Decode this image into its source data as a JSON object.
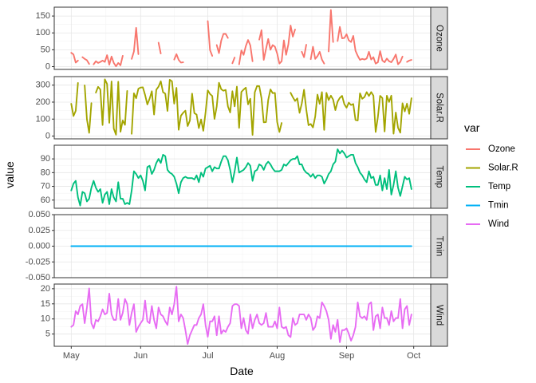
{
  "chart_data": {
    "type": "line",
    "xlabel": "Date",
    "ylabel": "value",
    "x_ticks": [
      "May",
      "Jun",
      "Jul",
      "Aug",
      "Sep",
      "Oct"
    ],
    "x_tick_days": [
      0,
      31,
      61,
      92,
      123,
      153
    ],
    "x_range_days": [
      -7.6,
      160.6
    ],
    "legend": {
      "title": "var",
      "placement": "right"
    },
    "series": [
      {
        "name": "Ozone",
        "color": "#F8766D",
        "ylim": [
          -8.25,
          176.25
        ],
        "yticks": [
          0,
          50,
          100,
          150
        ],
        "values": [
          41,
          36,
          12,
          18,
          null,
          28,
          23,
          19,
          8,
          null,
          7,
          16,
          11,
          14,
          18,
          14,
          34,
          6,
          30,
          11,
          1,
          11,
          4,
          32,
          null,
          null,
          null,
          23,
          45,
          115,
          37,
          null,
          null,
          null,
          null,
          null,
          null,
          29,
          null,
          71,
          39,
          null,
          null,
          23,
          null,
          null,
          21,
          37,
          20,
          12,
          13,
          null,
          null,
          null,
          null,
          null,
          null,
          null,
          null,
          null,
          null,
          135,
          49,
          32,
          null,
          64,
          40,
          77,
          97,
          97,
          85,
          null,
          10,
          27,
          null,
          7,
          48,
          35,
          61,
          79,
          63,
          16,
          null,
          null,
          80,
          108,
          20,
          52,
          82,
          50,
          64,
          59,
          39,
          9,
          16,
          78,
          35,
          66,
          122,
          89,
          110,
          null,
          null,
          44,
          28,
          65,
          null,
          22,
          59,
          23,
          31,
          44,
          21,
          9,
          null,
          45,
          168,
          73,
          null,
          76,
          118,
          84,
          85,
          96,
          78,
          73,
          91,
          47,
          32,
          20,
          23,
          21,
          24,
          44,
          21,
          28,
          9,
          13,
          46,
          18,
          13,
          24,
          16,
          13,
          23,
          36,
          7,
          14,
          30,
          null,
          14,
          18,
          20
        ]
      },
      {
        "name": "Solar.R",
        "color": "#A3A500",
        "ylim": [
          -16.35,
          350.35
        ],
        "yticks": [
          0,
          100,
          200,
          300
        ],
        "values": [
          190,
          118,
          149,
          313,
          null,
          null,
          299,
          99,
          19,
          194,
          null,
          256,
          290,
          274,
          65,
          334,
          307,
          78,
          322,
          44,
          8,
          320,
          25,
          92,
          66,
          266,
          null,
          13,
          252,
          223,
          279,
          286,
          287,
          242,
          186,
          220,
          264,
          127,
          273,
          291,
          323,
          259,
          250,
          148,
          332,
          322,
          191,
          284,
          37,
          120,
          137,
          150,
          59,
          91,
          250,
          135,
          127,
          47,
          98,
          31,
          138,
          269,
          248,
          236,
          101,
          175,
          314,
          276,
          267,
          272,
          175,
          139,
          264,
          175,
          291,
          48,
          260,
          274,
          285,
          187,
          220,
          7,
          258,
          295,
          294,
          223,
          81,
          82,
          213,
          275,
          253,
          254,
          83,
          24,
          77,
          null,
          null,
          null,
          255,
          229,
          207,
          222,
          137,
          192,
          273,
          157,
          64,
          71,
          51,
          115,
          244,
          190,
          259,
          36,
          255,
          212,
          238,
          215,
          153,
          203,
          225,
          237,
          188,
          167,
          197,
          183,
          189,
          95,
          92,
          252,
          220,
          230,
          259,
          236,
          259,
          238,
          24,
          112,
          237,
          224,
          27,
          238,
          201,
          238,
          14,
          139,
          49,
          20,
          193,
          145,
          191,
          131,
          223
        ]
      },
      {
        "name": "Temp",
        "color": "#00BF7D",
        "ylim": [
          54.05,
          99.95
        ],
        "yticks": [
          60,
          70,
          80,
          90
        ],
        "values": [
          67,
          72,
          74,
          62,
          56,
          66,
          65,
          59,
          61,
          69,
          74,
          69,
          66,
          68,
          58,
          64,
          66,
          57,
          68,
          62,
          59,
          73,
          61,
          61,
          57,
          58,
          57,
          67,
          81,
          79,
          76,
          78,
          74,
          67,
          84,
          85,
          79,
          82,
          87,
          90,
          87,
          93,
          92,
          82,
          80,
          79,
          77,
          72,
          65,
          73,
          76,
          77,
          76,
          76,
          76,
          75,
          78,
          73,
          80,
          77,
          83,
          84,
          85,
          81,
          84,
          83,
          83,
          88,
          92,
          92,
          89,
          82,
          73,
          81,
          91,
          80,
          81,
          82,
          84,
          87,
          85,
          74,
          81,
          82,
          86,
          85,
          82,
          86,
          88,
          86,
          83,
          81,
          81,
          81,
          82,
          86,
          85,
          87,
          89,
          90,
          90,
          92,
          86,
          86,
          82,
          80,
          79,
          77,
          79,
          76,
          78,
          78,
          77,
          72,
          75,
          79,
          81,
          86,
          88,
          97,
          94,
          96,
          94,
          91,
          92,
          93,
          93,
          87,
          84,
          80,
          78,
          75,
          73,
          81,
          76,
          77,
          71,
          71,
          78,
          67,
          76,
          68,
          82,
          64,
          71,
          81,
          69,
          63,
          70,
          77,
          75,
          76,
          68
        ]
      },
      {
        "name": "Tmin",
        "color": "#00B0F6",
        "ylim": [
          -0.05,
          0.05
        ],
        "yticks": [
          -0.05,
          -0.025,
          0.0,
          0.025,
          0.05
        ],
        "ytick_labels": [
          "-0.050",
          "-0.025",
          "0.000",
          "0.025",
          "0.050"
        ],
        "constant": 0,
        "days": [
          0,
          152
        ]
      },
      {
        "name": "Wind",
        "color": "#E76BF3",
        "ylim": [
          0.95,
          21.55
        ],
        "yticks": [
          5,
          10,
          15,
          20
        ],
        "values": [
          7.4,
          8.0,
          12.6,
          11.5,
          14.3,
          14.9,
          8.6,
          13.8,
          20.1,
          8.6,
          6.9,
          9.7,
          9.2,
          10.9,
          13.2,
          11.5,
          12.0,
          18.4,
          11.5,
          9.7,
          9.7,
          16.6,
          9.7,
          12.0,
          16.6,
          14.9,
          8.0,
          12.0,
          14.9,
          5.7,
          7.4,
          8.6,
          9.7,
          16.1,
          9.2,
          8.6,
          14.3,
          9.7,
          6.9,
          13.8,
          11.5,
          10.9,
          9.2,
          8.0,
          13.8,
          11.5,
          14.9,
          20.7,
          9.2,
          11.5,
          10.3,
          6.3,
          1.7,
          4.6,
          6.3,
          8.0,
          8.0,
          10.3,
          11.5,
          14.9,
          8.0,
          4.1,
          9.2,
          9.2,
          10.9,
          4.6,
          10.9,
          5.1,
          6.3,
          5.7,
          7.4,
          8.6,
          14.3,
          14.9,
          14.9,
          14.3,
          6.9,
          10.3,
          6.3,
          5.1,
          11.5,
          6.9,
          9.7,
          11.5,
          8.6,
          8.0,
          8.6,
          12.0,
          7.4,
          7.4,
          7.4,
          9.2,
          6.9,
          13.8,
          7.4,
          6.9,
          7.4,
          4.6,
          4.0,
          10.3,
          8.0,
          8.6,
          11.5,
          11.5,
          11.5,
          9.7,
          11.5,
          10.3,
          6.3,
          7.4,
          10.9,
          10.3,
          15.5,
          14.3,
          12.6,
          9.7,
          3.4,
          8.0,
          5.7,
          9.7,
          2.3,
          6.3,
          6.3,
          6.9,
          5.1,
          2.8,
          4.6,
          7.4,
          15.5,
          10.9,
          10.3,
          10.9,
          9.7,
          14.9,
          15.5,
          6.3,
          10.9,
          11.5,
          6.9,
          13.8,
          10.3,
          10.3,
          8.0,
          12.6,
          9.2,
          10.3,
          10.3,
          16.6,
          6.9,
          13.2,
          14.3,
          8.0,
          11.5
        ]
      }
    ]
  }
}
